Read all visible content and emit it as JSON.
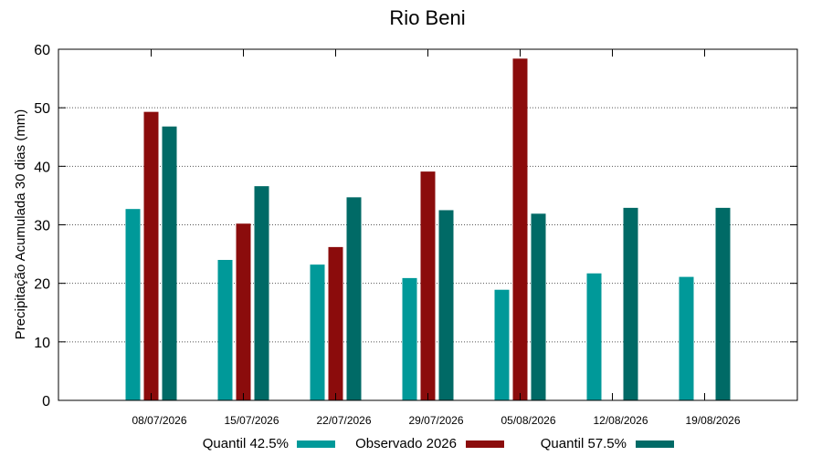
{
  "chart_data": {
    "type": "bar",
    "title": "Rio Beni",
    "ylabel": "Precipitação Acumulada 30 dias (mm)",
    "xlabel": "",
    "ylim": [
      0,
      60
    ],
    "yticks": [
      0,
      10,
      20,
      30,
      40,
      50,
      60
    ],
    "grid": "horizontal-dotted",
    "legend_position": "bottom",
    "categories": [
      "08/07/2026",
      "15/07/2026",
      "22/07/2026",
      "29/07/2026",
      "05/08/2026",
      "12/08/2026",
      "19/08/2026"
    ],
    "series": [
      {
        "name": "Quantil 42.5%",
        "color": "#009999",
        "values": [
          32.7,
          24.0,
          23.2,
          20.9,
          18.9,
          21.7,
          21.1
        ]
      },
      {
        "name": "Observado 2026",
        "color": "#8b0c0c",
        "values": [
          49.3,
          30.2,
          26.2,
          39.1,
          58.4,
          null,
          null
        ]
      },
      {
        "name": "Quantil 57.5%",
        "color": "#006a66",
        "values": [
          46.8,
          36.6,
          34.7,
          32.5,
          31.9,
          32.9,
          32.9
        ]
      }
    ]
  }
}
